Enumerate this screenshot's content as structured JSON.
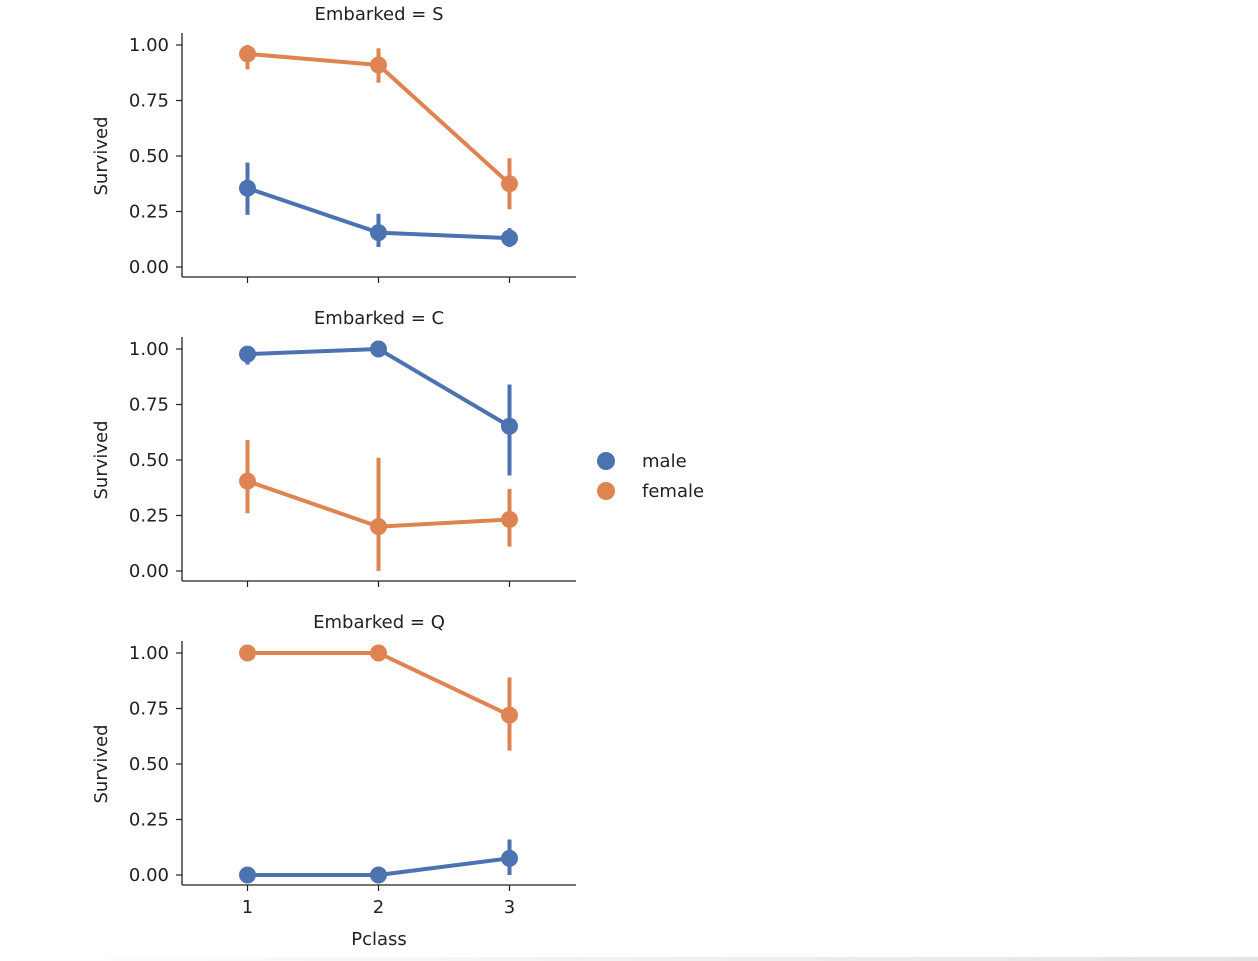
{
  "chart_data": {
    "type": "line",
    "x_label": "Pclass",
    "y_label": "Survived",
    "categories": [
      "1",
      "2",
      "3"
    ],
    "yticks": [
      "0.00",
      "0.25",
      "0.50",
      "0.75",
      "1.00"
    ],
    "ylim": [
      0,
      1
    ],
    "legend": {
      "placement": "right",
      "entries": [
        {
          "name": "male",
          "color": "#4c72b0"
        },
        {
          "name": "female",
          "color": "#dd8452"
        }
      ]
    },
    "facets": [
      {
        "title": "Embarked = S",
        "series": [
          {
            "name": "male",
            "values": [
              0.355,
              0.155,
              0.13
            ],
            "ci_low": [
              0.235,
              0.09,
              0.09
            ],
            "ci_high": [
              0.47,
              0.24,
              0.175
            ]
          },
          {
            "name": "female",
            "values": [
              0.96,
              0.91,
              0.375
            ],
            "ci_low": [
              0.89,
              0.83,
              0.26
            ],
            "ci_high": [
              1.0,
              0.985,
              0.49
            ]
          }
        ]
      },
      {
        "title": "Embarked = C",
        "series": [
          {
            "name": "male",
            "values": [
              0.977,
              1.0,
              0.652
            ],
            "ci_low": [
              0.93,
              1.0,
              0.43
            ],
            "ci_high": [
              1.0,
              1.0,
              0.84
            ]
          },
          {
            "name": "female",
            "values": [
              0.405,
              0.2,
              0.232
            ],
            "ci_low": [
              0.26,
              0.0,
              0.11
            ],
            "ci_high": [
              0.59,
              0.51,
              0.37
            ]
          }
        ]
      },
      {
        "title": "Embarked = Q",
        "series": [
          {
            "name": "male",
            "values": [
              0.0,
              0.0,
              0.075
            ],
            "ci_low": [
              0.0,
              0.0,
              0.0
            ],
            "ci_high": [
              0.0,
              0.0,
              0.16
            ]
          },
          {
            "name": "female",
            "values": [
              1.0,
              1.0,
              0.72
            ],
            "ci_low": [
              1.0,
              1.0,
              0.56
            ],
            "ci_high": [
              1.0,
              1.0,
              0.89
            ]
          }
        ]
      }
    ]
  }
}
